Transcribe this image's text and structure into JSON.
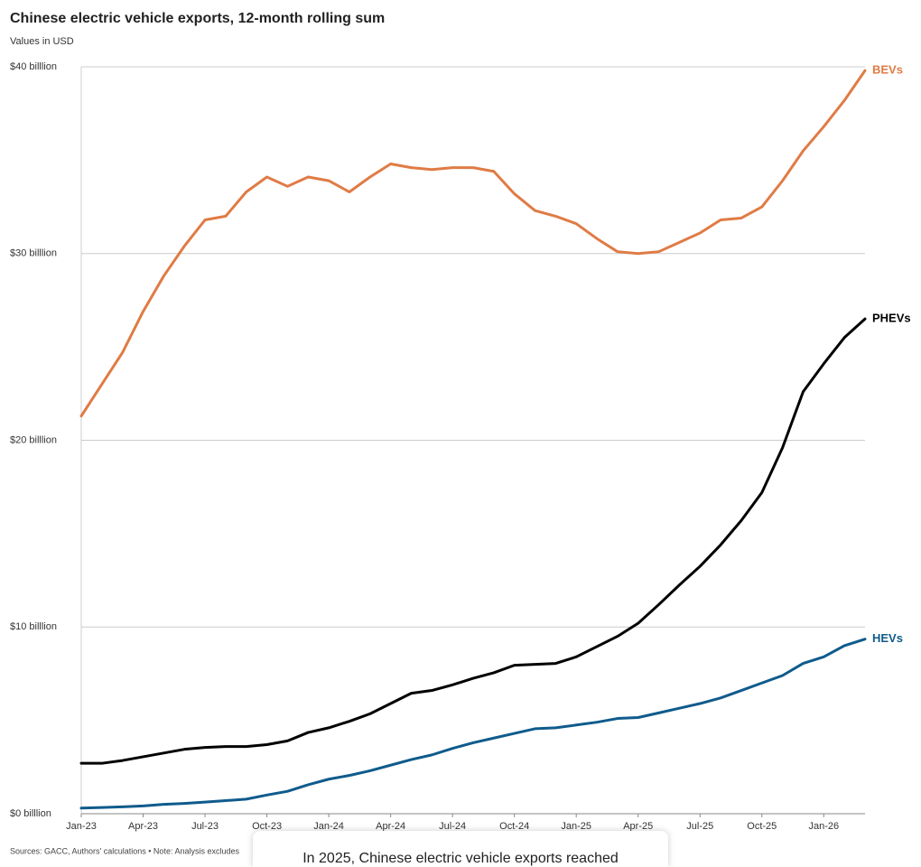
{
  "chart_data": {
    "type": "line",
    "title": "Chinese electric vehicle exports, 12-month rolling sum",
    "subtitle": "Values in USD",
    "footnote": "Sources: GACC, Authors' calculations • Note: Analysis excludes",
    "annotation": "In 2025, Chinese electric vehicle exports reached",
    "categories": [
      "Jan-23",
      null,
      null,
      "Apr-23",
      null,
      null,
      "Jul-23",
      null,
      null,
      "Oct-23",
      null,
      null,
      "Jan-24",
      null,
      null,
      "Apr-24",
      null,
      null,
      "Jul-24",
      null,
      null,
      "Oct-24",
      null,
      null,
      "Jan-25",
      null,
      null,
      "Apr-25",
      null,
      null,
      "Jul-25",
      null,
      null,
      "Oct-25",
      null,
      null,
      "Jan-26",
      null,
      null
    ],
    "series": [
      {
        "name": "BEVs",
        "color": "#e07b45",
        "values": [
          21.3,
          23.0,
          24.7,
          26.9,
          28.8,
          30.4,
          31.8,
          32.0,
          33.3,
          34.1,
          33.6,
          34.1,
          33.9,
          33.3,
          34.1,
          34.8,
          34.6,
          34.5,
          34.6,
          34.6,
          34.4,
          33.2,
          32.3,
          32.0,
          31.6,
          30.8,
          30.1,
          30.0,
          30.1,
          30.6,
          31.1,
          31.8,
          31.9,
          32.5,
          33.9,
          35.5,
          36.8,
          38.2,
          39.8
        ]
      },
      {
        "name": "PHEVs",
        "color": "#000000",
        "values": [
          2.7,
          2.7,
          2.85,
          3.05,
          3.25,
          3.45,
          3.55,
          3.6,
          3.6,
          3.7,
          3.9,
          4.35,
          4.6,
          4.95,
          5.35,
          5.9,
          6.45,
          6.6,
          6.9,
          7.25,
          7.55,
          7.95,
          8.0,
          8.05,
          8.4,
          8.95,
          9.5,
          10.2,
          11.2,
          12.25,
          13.25,
          14.4,
          15.7,
          17.2,
          19.6,
          22.6,
          24.1,
          25.5,
          26.5
        ]
      },
      {
        "name": "HEVs",
        "color": "#0f5b8c",
        "values": [
          0.3,
          0.33,
          0.37,
          0.42,
          0.5,
          0.55,
          0.62,
          0.7,
          0.78,
          1.0,
          1.2,
          1.55,
          1.85,
          2.05,
          2.3,
          2.6,
          2.9,
          3.15,
          3.5,
          3.8,
          4.05,
          4.3,
          4.55,
          4.6,
          4.75,
          4.9,
          5.1,
          5.15,
          5.4,
          5.65,
          5.9,
          6.2,
          6.6,
          7.0,
          7.4,
          8.05,
          8.4,
          9.0,
          9.35
        ]
      }
    ],
    "ylim": [
      0,
      40
    ],
    "yticks": [
      {
        "value": 0,
        "label": "$0 billlion"
      },
      {
        "value": 10,
        "label": "$10 billlion"
      },
      {
        "value": 20,
        "label": "$20 billlion"
      },
      {
        "value": 30,
        "label": "$30 billlion"
      },
      {
        "value": 40,
        "label": "$40 billlion"
      }
    ],
    "grid": true
  }
}
